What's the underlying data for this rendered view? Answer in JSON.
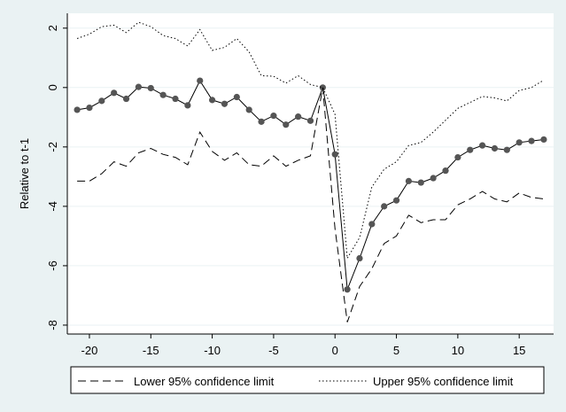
{
  "chart_data": {
    "type": "line",
    "title": "",
    "xlabel": "",
    "ylabel": "Relative to t-1",
    "xlim": [
      -21.8,
      17.8
    ],
    "ylim": [
      -8.3,
      2.5
    ],
    "xticks": [
      -20,
      -15,
      -10,
      -5,
      0,
      5,
      10,
      15
    ],
    "yticks": [
      2,
      0,
      -2,
      -4,
      -6,
      -8
    ],
    "xtick_labels": [
      "-20",
      "-15",
      "-10",
      "-5",
      "0",
      "5",
      "10",
      "15"
    ],
    "ytick_labels": [
      "2",
      "0",
      "-2",
      "-4",
      "-6",
      "-8"
    ],
    "grid": "horizontal",
    "legend": {
      "position": "bottom",
      "entries": [
        "Lower 95% confidence limit",
        "Upper 95% confidence limit"
      ]
    },
    "colors": {
      "background": "#eaf2f3",
      "plot_area": "#ffffff",
      "gridline": "#eaf2f3",
      "line": "#000000",
      "marker": "#555555"
    },
    "x": [
      -21,
      -20,
      -19,
      -18,
      -17,
      -16,
      -15,
      -14,
      -13,
      -12,
      -11,
      -10,
      -9,
      -8,
      -7,
      -6,
      -5,
      -4,
      -3,
      -2,
      -1,
      0,
      1,
      2,
      3,
      4,
      5,
      6,
      7,
      8,
      9,
      10,
      11,
      12,
      13,
      14,
      15,
      16,
      17
    ],
    "series": [
      {
        "style": "solid-markers",
        "values": [
          -0.75,
          -0.68,
          -0.45,
          -0.18,
          -0.38,
          0.02,
          -0.02,
          -0.25,
          -0.38,
          -0.6,
          0.23,
          -0.42,
          -0.55,
          -0.32,
          -0.75,
          -1.15,
          -0.95,
          -1.25,
          -0.98,
          -1.12,
          0.0,
          -2.25,
          -6.8,
          -5.75,
          -4.6,
          -4.0,
          -3.8,
          -3.15,
          -3.2,
          -3.05,
          -2.8,
          -2.35,
          -2.1,
          -1.95,
          -2.05,
          -2.1,
          -1.85,
          -1.8,
          -1.75
        ]
      },
      {
        "name": "Lower 95% confidence limit",
        "style": "dashed",
        "values": [
          -3.15,
          -3.15,
          -2.9,
          -2.5,
          -2.65,
          -2.2,
          -2.05,
          -2.25,
          -2.35,
          -2.6,
          -1.5,
          -2.15,
          -2.45,
          -2.2,
          -2.6,
          -2.65,
          -2.3,
          -2.65,
          -2.45,
          -2.3,
          0.0,
          -4.75,
          -7.9,
          -6.7,
          -6.1,
          -5.25,
          -5.0,
          -4.3,
          -4.55,
          -4.45,
          -4.45,
          -3.95,
          -3.75,
          -3.5,
          -3.75,
          -3.85,
          -3.55,
          -3.7,
          -3.75
        ]
      },
      {
        "name": "Upper 95% confidence limit",
        "style": "dotted",
        "values": [
          1.65,
          1.8,
          2.05,
          2.1,
          1.85,
          2.2,
          2.05,
          1.75,
          1.65,
          1.4,
          1.95,
          1.25,
          1.35,
          1.65,
          1.2,
          0.4,
          0.38,
          0.15,
          0.4,
          0.1,
          0.0,
          -0.9,
          -5.75,
          -5.05,
          -3.35,
          -2.75,
          -2.5,
          -1.95,
          -1.85,
          -1.5,
          -1.1,
          -0.7,
          -0.5,
          -0.3,
          -0.35,
          -0.45,
          -0.1,
          0.0,
          0.25
        ]
      }
    ]
  }
}
